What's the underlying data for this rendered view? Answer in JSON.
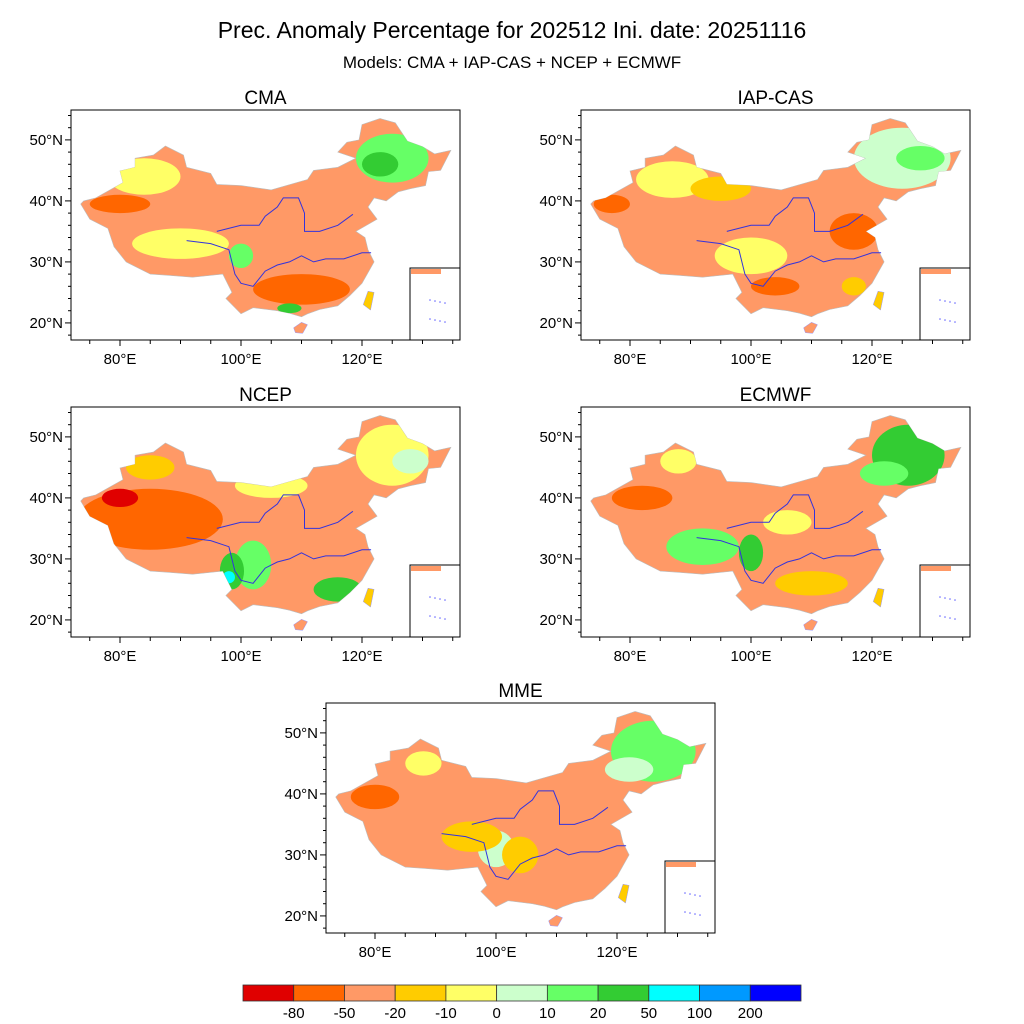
{
  "title": "Prec. Anomaly Percentage for 202512 Ini. date: 20251116",
  "subtitle": "Models: CMA + IAP-CAS + NCEP + ECMWF",
  "chart_data": {
    "type": "heatmap",
    "title": "Prec. Anomaly Percentage for 202512 Ini. date: 20251116",
    "subtitle": "Models: CMA + IAP-CAS + NCEP + ECMWF",
    "lon_range": [
      72,
      136
    ],
    "lat_range": [
      17,
      55
    ],
    "x_ticks": [
      {
        "value": 80,
        "label": "80°E"
      },
      {
        "value": 100,
        "label": "100°E"
      },
      {
        "value": 120,
        "label": "120°E"
      }
    ],
    "y_ticks": [
      {
        "value": 20,
        "label": "20°N"
      },
      {
        "value": 30,
        "label": "30°N"
      },
      {
        "value": 40,
        "label": "40°N"
      },
      {
        "value": 50,
        "label": "50°N"
      }
    ],
    "colorbar": {
      "levels": [
        "-80",
        "-50",
        "-20",
        "-10",
        "0",
        "10",
        "20",
        "50",
        "100",
        "200"
      ],
      "level_values": [
        -80,
        -50,
        -20,
        -10,
        0,
        10,
        20,
        50,
        100,
        200
      ],
      "colors": [
        "#e00000",
        "#ff6600",
        "#ff9966",
        "#ffcc00",
        "#ffff66",
        "#ccffcc",
        "#66ff66",
        "#33cc33",
        "#00ffff",
        "#0099ff",
        "#0000ff"
      ],
      "placement": "bottom"
    },
    "panels": [
      {
        "name": "CMA",
        "base": -35,
        "regions": [
          {
            "lon": 125,
            "lat": 47,
            "rlon": 6,
            "rlat": 4,
            "value": 15
          },
          {
            "lon": 123,
            "lat": 46,
            "rlon": 3,
            "rlat": 2,
            "value": 30
          },
          {
            "lon": 84,
            "lat": 44,
            "rlon": 6,
            "rlat": 3,
            "value": -5
          },
          {
            "lon": 80,
            "lat": 39.5,
            "rlon": 5,
            "rlat": 1.5,
            "value": -60
          },
          {
            "lon": 110,
            "lat": 25.5,
            "rlon": 8,
            "rlat": 2.5,
            "value": -60
          },
          {
            "lon": 90,
            "lat": 33,
            "rlon": 8,
            "rlat": 2.5,
            "value": -8
          },
          {
            "lon": 100,
            "lat": 31,
            "rlon": 2,
            "rlat": 2,
            "value": 15
          },
          {
            "lon": 108,
            "lat": 22.4,
            "rlon": 2,
            "rlat": 0.8,
            "value": 30
          }
        ]
      },
      {
        "name": "IAP-CAS",
        "base": -35,
        "regions": [
          {
            "lon": 125,
            "lat": 47,
            "rlon": 8,
            "rlat": 5,
            "value": 5
          },
          {
            "lon": 128,
            "lat": 47,
            "rlon": 4,
            "rlat": 2,
            "value": 15
          },
          {
            "lon": 87,
            "lat": 43.5,
            "rlon": 6,
            "rlat": 3,
            "value": -5
          },
          {
            "lon": 77,
            "lat": 39.5,
            "rlon": 3,
            "rlat": 1.5,
            "value": -60
          },
          {
            "lon": 100,
            "lat": 31,
            "rlon": 6,
            "rlat": 3,
            "value": -5
          },
          {
            "lon": 117,
            "lat": 35,
            "rlon": 4,
            "rlat": 3,
            "value": -60
          },
          {
            "lon": 104,
            "lat": 26,
            "rlon": 4,
            "rlat": 1.5,
            "value": -60
          },
          {
            "lon": 117,
            "lat": 26,
            "rlon": 2,
            "rlat": 1.5,
            "value": -15
          },
          {
            "lon": 95,
            "lat": 42,
            "rlon": 5,
            "rlat": 2,
            "value": -15
          }
        ]
      },
      {
        "name": "NCEP",
        "base": -35,
        "regions": [
          {
            "lon": 85,
            "lat": 36.5,
            "rlon": 12,
            "rlat": 5,
            "value": -60
          },
          {
            "lon": 80,
            "lat": 40,
            "rlon": 3,
            "rlat": 1.5,
            "value": -85
          },
          {
            "lon": 125,
            "lat": 47,
            "rlon": 6,
            "rlat": 5,
            "value": -5
          },
          {
            "lon": 128,
            "lat": 46,
            "rlon": 3,
            "rlat": 2,
            "value": 5
          },
          {
            "lon": 102,
            "lat": 29,
            "rlon": 3,
            "rlat": 4,
            "value": 15
          },
          {
            "lon": 98.5,
            "lat": 28,
            "rlon": 2,
            "rlat": 3,
            "value": 30
          },
          {
            "lon": 98,
            "lat": 27,
            "rlon": 1,
            "rlat": 1,
            "value": 75
          },
          {
            "lon": 116,
            "lat": 25,
            "rlon": 4,
            "rlat": 2,
            "value": 30
          },
          {
            "lon": 105,
            "lat": 42,
            "rlon": 6,
            "rlat": 2,
            "value": -5
          },
          {
            "lon": 85,
            "lat": 45,
            "rlon": 4,
            "rlat": 2,
            "value": -15
          }
        ]
      },
      {
        "name": "ECMWF",
        "base": -35,
        "regions": [
          {
            "lon": 126,
            "lat": 47,
            "rlon": 6,
            "rlat": 5,
            "value": 30
          },
          {
            "lon": 122,
            "lat": 44,
            "rlon": 4,
            "rlat": 2,
            "value": 15
          },
          {
            "lon": 92,
            "lat": 32,
            "rlon": 6,
            "rlat": 3,
            "value": 15
          },
          {
            "lon": 100,
            "lat": 31,
            "rlon": 2,
            "rlat": 3,
            "value": 25
          },
          {
            "lon": 82,
            "lat": 40,
            "rlon": 5,
            "rlat": 2,
            "value": -60
          },
          {
            "lon": 88,
            "lat": 46,
            "rlon": 3,
            "rlat": 2,
            "value": -5
          },
          {
            "lon": 110,
            "lat": 26,
            "rlon": 6,
            "rlat": 2,
            "value": -15
          },
          {
            "lon": 106,
            "lat": 36,
            "rlon": 4,
            "rlat": 2,
            "value": -5
          }
        ]
      },
      {
        "name": "MME",
        "base": -35,
        "regions": [
          {
            "lon": 126,
            "lat": 47,
            "rlon": 7,
            "rlat": 5,
            "value": 15
          },
          {
            "lon": 122,
            "lat": 44,
            "rlon": 4,
            "rlat": 2,
            "value": 5
          },
          {
            "lon": 80,
            "lat": 39.5,
            "rlon": 4,
            "rlat": 2,
            "value": -60
          },
          {
            "lon": 100,
            "lat": 31,
            "rlon": 3,
            "rlat": 3,
            "value": 5
          },
          {
            "lon": 104,
            "lat": 30,
            "rlon": 3,
            "rlat": 3,
            "value": -15
          },
          {
            "lon": 96,
            "lat": 33,
            "rlon": 5,
            "rlat": 2.5,
            "value": -15
          },
          {
            "lon": 88,
            "lat": 45,
            "rlon": 3,
            "rlat": 2,
            "value": -5
          }
        ]
      }
    ]
  }
}
